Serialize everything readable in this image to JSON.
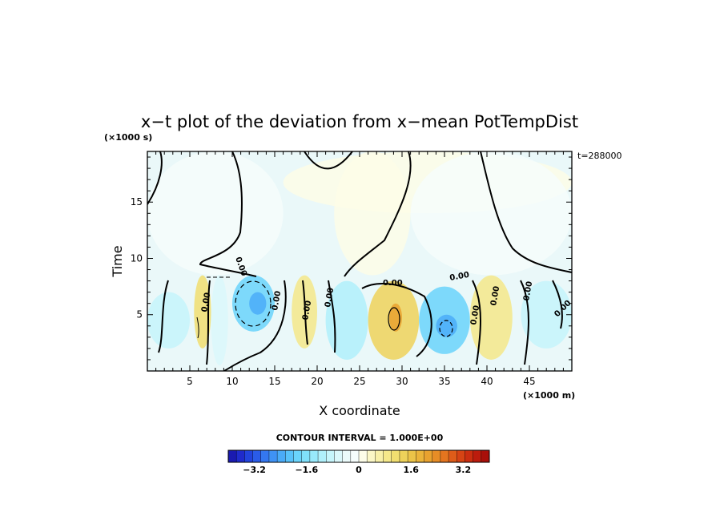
{
  "chart_data": {
    "type": "heatmap",
    "title": "x−t plot of the deviation from x−mean PotTempDist",
    "xlabel": "X coordinate",
    "ylabel": "Time",
    "x_unit": "(×1000 m)",
    "y_unit": "(×1000 s)",
    "time_label": "t=288000",
    "contour_interval_text": "CONTOUR INTERVAL = 1.000E+00",
    "xlim": [
      0,
      50
    ],
    "ylim": [
      0,
      19.5
    ],
    "x_ticks": [
      5,
      10,
      15,
      20,
      25,
      30,
      35,
      40,
      45
    ],
    "y_ticks": [
      5,
      10,
      15
    ],
    "contour_labels": [
      "0.00",
      "0.00",
      "0.00",
      "0.00",
      "0.00",
      "0.00",
      "0.00",
      "0.00",
      "0.00",
      "0.00",
      "0.00"
    ],
    "colorbar": {
      "min": -4,
      "max": 4,
      "ticks": [
        -3.2,
        -1.6,
        0,
        1.6,
        3.2
      ],
      "tick_labels": [
        "−3.2",
        "−1.6",
        "0",
        "1.6",
        "3.2"
      ],
      "colors": [
        "#1a1ab0",
        "#1f2bcc",
        "#2244dd",
        "#2a5ce8",
        "#3477f0",
        "#3f92f5",
        "#4aabf8",
        "#58c2fa",
        "#6ad4fb",
        "#80e0fb",
        "#98e9fb",
        "#b0f0fb",
        "#c6f5fb",
        "#dbf8fb",
        "#ecfbfb",
        "#f6fdfc",
        "#fdfde8",
        "#fbf7c6",
        "#f8f0a8",
        "#f5e88a",
        "#f1de70",
        "#eed25a",
        "#ecc448",
        "#ebb43a",
        "#e9a22f",
        "#e78d26",
        "#e4751f",
        "#de5c19",
        "#d64414",
        "#cb2e10",
        "#bc1c0d",
        "#a8100a"
      ]
    },
    "cells": [
      {
        "x": [
          0,
          16
        ],
        "t": [
          8.5,
          19.5
        ],
        "value": -0.15
      },
      {
        "x": [
          16,
          50
        ],
        "t": [
          14,
          19.5
        ],
        "value": 0.1
      },
      {
        "x": [
          22,
          31
        ],
        "t": [
          8.5,
          19.5
        ],
        "value": 0.1
      },
      {
        "x": [
          31,
          50
        ],
        "t": [
          8.5,
          19.5
        ],
        "value": -0.15
      },
      {
        "x": [
          5.5,
          7.5
        ],
        "t": [
          2,
          8.5
        ],
        "value": 1.0
      },
      {
        "x": [
          10,
          15
        ],
        "t": [
          3.5,
          8.5
        ],
        "value": -1.8
      },
      {
        "x": [
          12,
          14
        ],
        "t": [
          5,
          7
        ],
        "value": -2.4
      },
      {
        "x": [
          0,
          5
        ],
        "t": [
          2,
          7
        ],
        "value": -1.0
      },
      {
        "x": [
          17,
          20
        ],
        "t": [
          2,
          8.5
        ],
        "value": 0.8
      },
      {
        "x": [
          21,
          26
        ],
        "t": [
          1,
          8
        ],
        "value": -1.2
      },
      {
        "x": [
          26,
          32
        ],
        "t": [
          1,
          8
        ],
        "value": 1.4
      },
      {
        "x": [
          28.5,
          30
        ],
        "t": [
          3.5,
          6
        ],
        "value": 2.0
      },
      {
        "x": [
          32,
          38
        ],
        "t": [
          1.5,
          7.5
        ],
        "value": -1.8
      },
      {
        "x": [
          34,
          36.5
        ],
        "t": [
          3,
          5
        ],
        "value": -2.4
      },
      {
        "x": [
          38,
          43
        ],
        "t": [
          1,
          8.5
        ],
        "value": 0.8
      },
      {
        "x": [
          44,
          50
        ],
        "t": [
          2,
          8
        ],
        "value": -0.8
      },
      {
        "x": [
          7.5,
          9.5
        ],
        "t": [
          0.5,
          8.5
        ],
        "value": -0.6
      }
    ]
  }
}
